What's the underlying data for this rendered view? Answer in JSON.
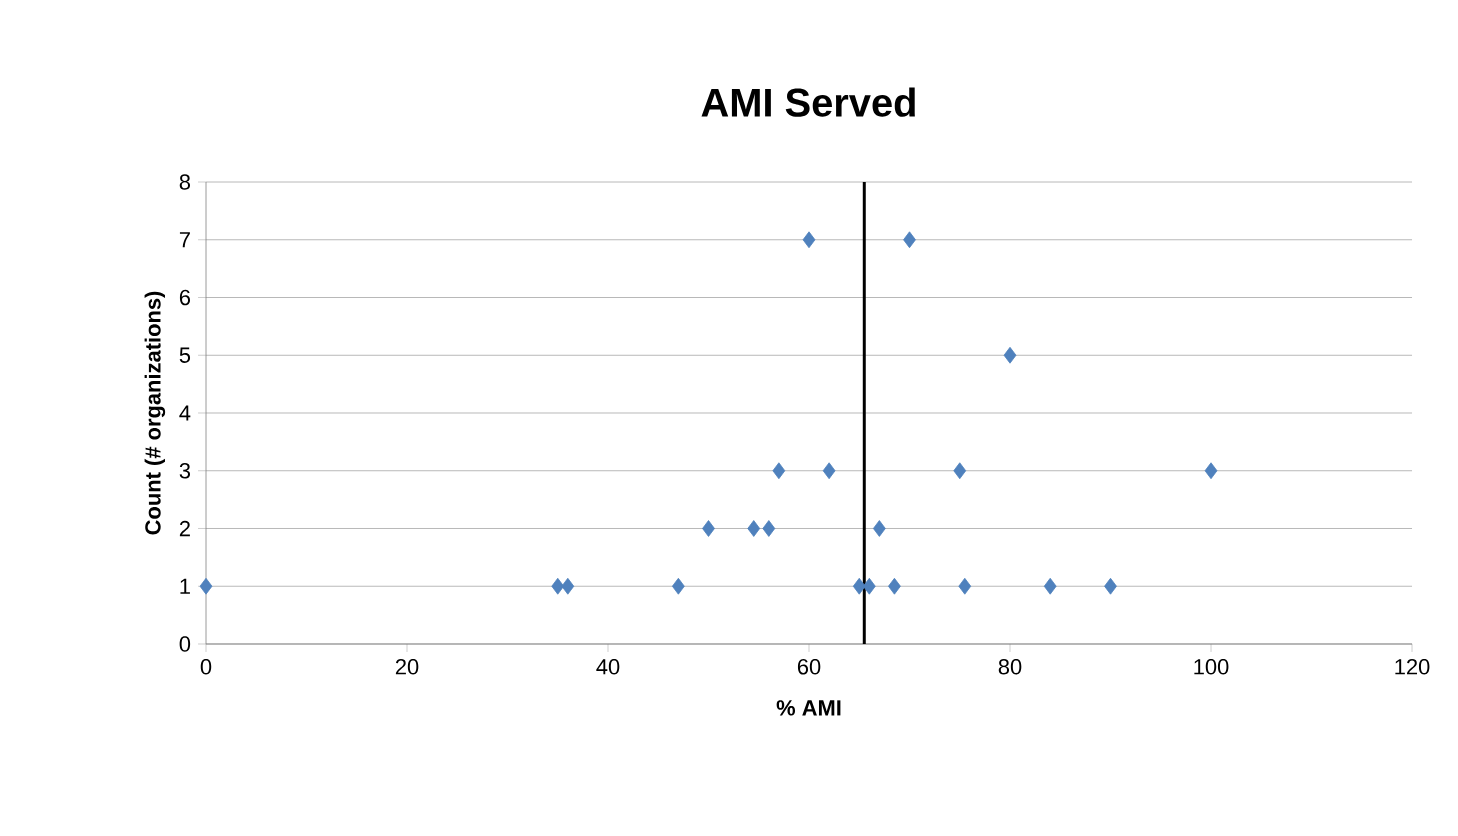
{
  "chart_data": {
    "type": "scatter",
    "title": "AMI Served",
    "xlabel": "% AMI",
    "ylabel": "Count (# organizations)",
    "x": [
      0,
      35,
      36,
      47,
      50,
      54.5,
      56,
      57,
      60,
      62,
      65,
      66,
      67,
      68.5,
      70,
      75,
      75.5,
      80,
      84,
      90,
      100
    ],
    "series": [
      {
        "color": "#4f81bd",
        "values": [
          1,
          1,
          1,
          1,
          2,
          2,
          2,
          3,
          7,
          3,
          1,
          1,
          2,
          1,
          7,
          3,
          1,
          5,
          1,
          1,
          3
        ]
      }
    ],
    "xlim": [
      0,
      120
    ],
    "ylim": [
      0,
      8
    ],
    "xticks": [
      0,
      20,
      40,
      60,
      80,
      100,
      120
    ],
    "yticks": [
      0,
      1,
      2,
      3,
      4,
      5,
      6,
      7,
      8
    ],
    "grid": "y",
    "marker": "diamond",
    "ref_lines": [
      {
        "axis": "x",
        "value": 65.5,
        "color": "#000000"
      }
    ]
  }
}
